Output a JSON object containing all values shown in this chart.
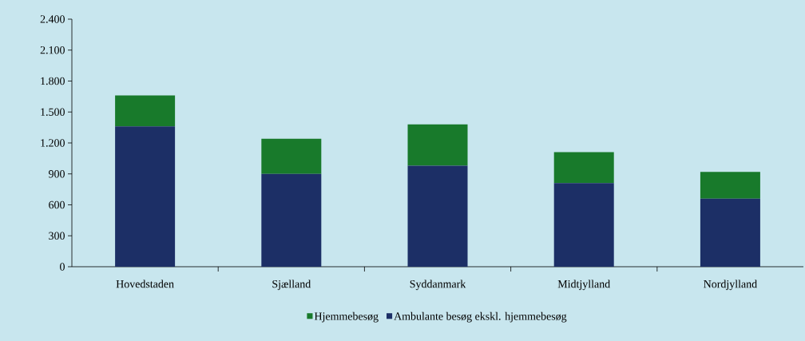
{
  "chart_data": {
    "type": "bar",
    "stacked": true,
    "categories": [
      "Hovedstaden",
      "Sjælland",
      "Syddanmark",
      "Midtjylland",
      "Nordjylland"
    ],
    "series": [
      {
        "name": "Ambulante besøg ekskl. hjemmebesøg",
        "color": "#1c2f66",
        "values": [
          1360,
          900,
          980,
          810,
          660
        ]
      },
      {
        "name": "Hjemmebesøg",
        "color": "#187a2b",
        "values": [
          300,
          340,
          400,
          300,
          260
        ]
      }
    ],
    "ylim": [
      0,
      2400
    ],
    "yticks": [
      0,
      300,
      600,
      900,
      {
        "value": 1200,
        "label": "1.200"
      },
      {
        "value": 1500,
        "label": "1.500"
      },
      {
        "value": 1800,
        "label": "1.800"
      },
      {
        "value": 2100,
        "label": "2.100"
      },
      {
        "value": 2400,
        "label": "2.400"
      }
    ],
    "legend": "bottom",
    "grid": false
  }
}
